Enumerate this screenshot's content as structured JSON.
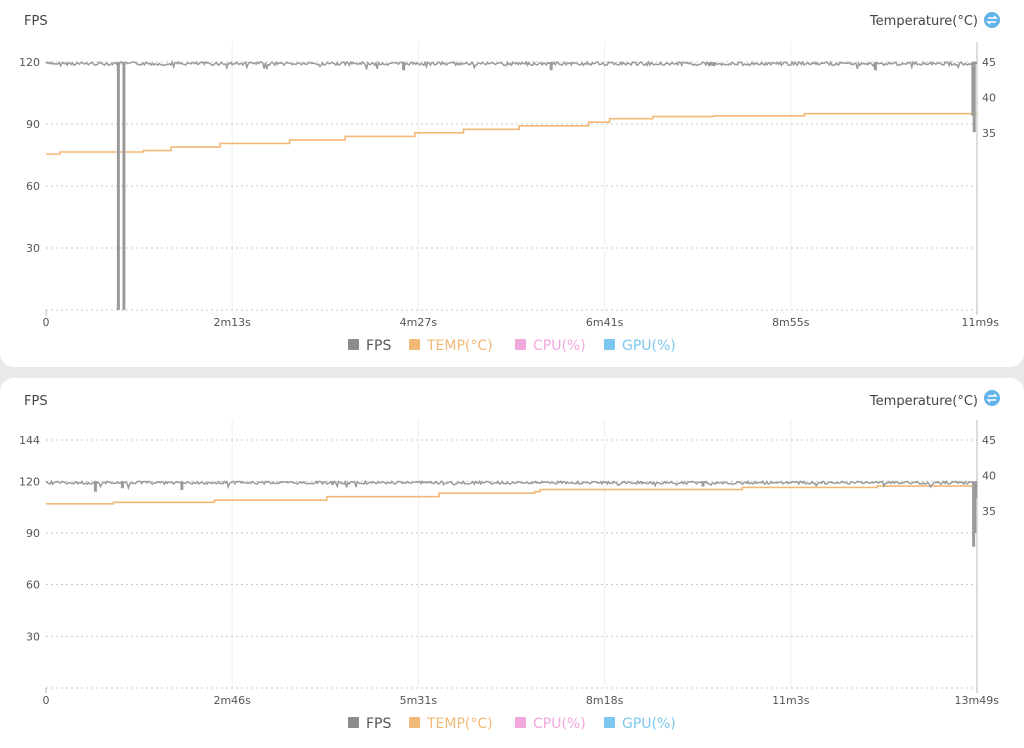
{
  "colors": {
    "fps": "#9a9a9a",
    "temp": "#f2b877",
    "cpu": "#f2a7dd",
    "gpu": "#7cc7ef",
    "toggle": "#62b4ea"
  },
  "legend": [
    {
      "label": "FPS",
      "color": "#8c8c8c"
    },
    {
      "label": "TEMP(°C)",
      "color": "#f2b877"
    },
    {
      "label": "CPU(%)",
      "color": "#f2a7dd"
    },
    {
      "label": "GPU(%)",
      "color": "#7cc7ef"
    }
  ],
  "chart_data": [
    {
      "type": "line",
      "ylabel": "FPS",
      "y2label": "Temperature(°C)",
      "yticks": [
        30,
        60,
        90,
        120
      ],
      "ylim": [
        0,
        120
      ],
      "y2ticks": [
        35,
        40,
        45
      ],
      "y2lim": [
        10,
        45
      ],
      "xticks": [
        "0",
        "2m13s",
        "4m27s",
        "6m41s",
        "8m55s",
        "11m9s"
      ],
      "duration_s": 669,
      "fps_baseline": 120,
      "fps_dips": [
        [
          52,
          0
        ],
        [
          56,
          0
        ],
        [
          257,
          116
        ],
        [
          363,
          116
        ],
        [
          480,
          118
        ],
        [
          477,
          118
        ],
        [
          596,
          116
        ],
        [
          666,
          94
        ],
        [
          667,
          86
        ],
        [
          668,
          119
        ]
      ],
      "temp_series": [
        [
          0,
          32
        ],
        [
          10,
          32.3
        ],
        [
          70,
          32.5
        ],
        [
          90,
          33
        ],
        [
          125,
          33.5
        ],
        [
          175,
          34
        ],
        [
          215,
          34.5
        ],
        [
          265,
          35
        ],
        [
          300,
          35.5
        ],
        [
          340,
          36
        ],
        [
          390,
          36.5
        ],
        [
          405,
          37
        ],
        [
          436,
          37.3
        ],
        [
          480,
          37.4
        ],
        [
          545,
          37.7
        ],
        [
          669,
          37.7
        ]
      ],
      "series": [
        {
          "name": "FPS",
          "color": "fps"
        },
        {
          "name": "TEMP(°C)",
          "color": "temp"
        }
      ]
    },
    {
      "type": "line",
      "ylabel": "FPS",
      "y2label": "Temperature(°C)",
      "yticks": [
        30,
        60,
        90,
        120,
        144
      ],
      "ylim": [
        0,
        144
      ],
      "y2ticks": [
        35,
        40,
        45
      ],
      "y2lim": [
        10,
        45
      ],
      "xticks": [
        "0",
        "2m46s",
        "5m31s",
        "8m18s",
        "11m3s",
        "13m49s"
      ],
      "duration_s": 829,
      "fps_baseline": 120,
      "fps_dips": [
        [
          44,
          114
        ],
        [
          68,
          116
        ],
        [
          121,
          115
        ],
        [
          255,
          118
        ],
        [
          585,
          117
        ],
        [
          826,
          82
        ],
        [
          827,
          90
        ],
        [
          828,
          110
        ]
      ],
      "temp_series": [
        [
          0,
          36
        ],
        [
          60,
          36.2
        ],
        [
          150,
          36.5
        ],
        [
          250,
          37
        ],
        [
          350,
          37.5
        ],
        [
          435,
          37.7
        ],
        [
          440,
          38
        ],
        [
          620,
          38.3
        ],
        [
          740,
          38.5
        ],
        [
          829,
          38.7
        ]
      ],
      "series": [
        {
          "name": "FPS",
          "color": "fps"
        },
        {
          "name": "TEMP(°C)",
          "color": "temp"
        }
      ]
    }
  ]
}
